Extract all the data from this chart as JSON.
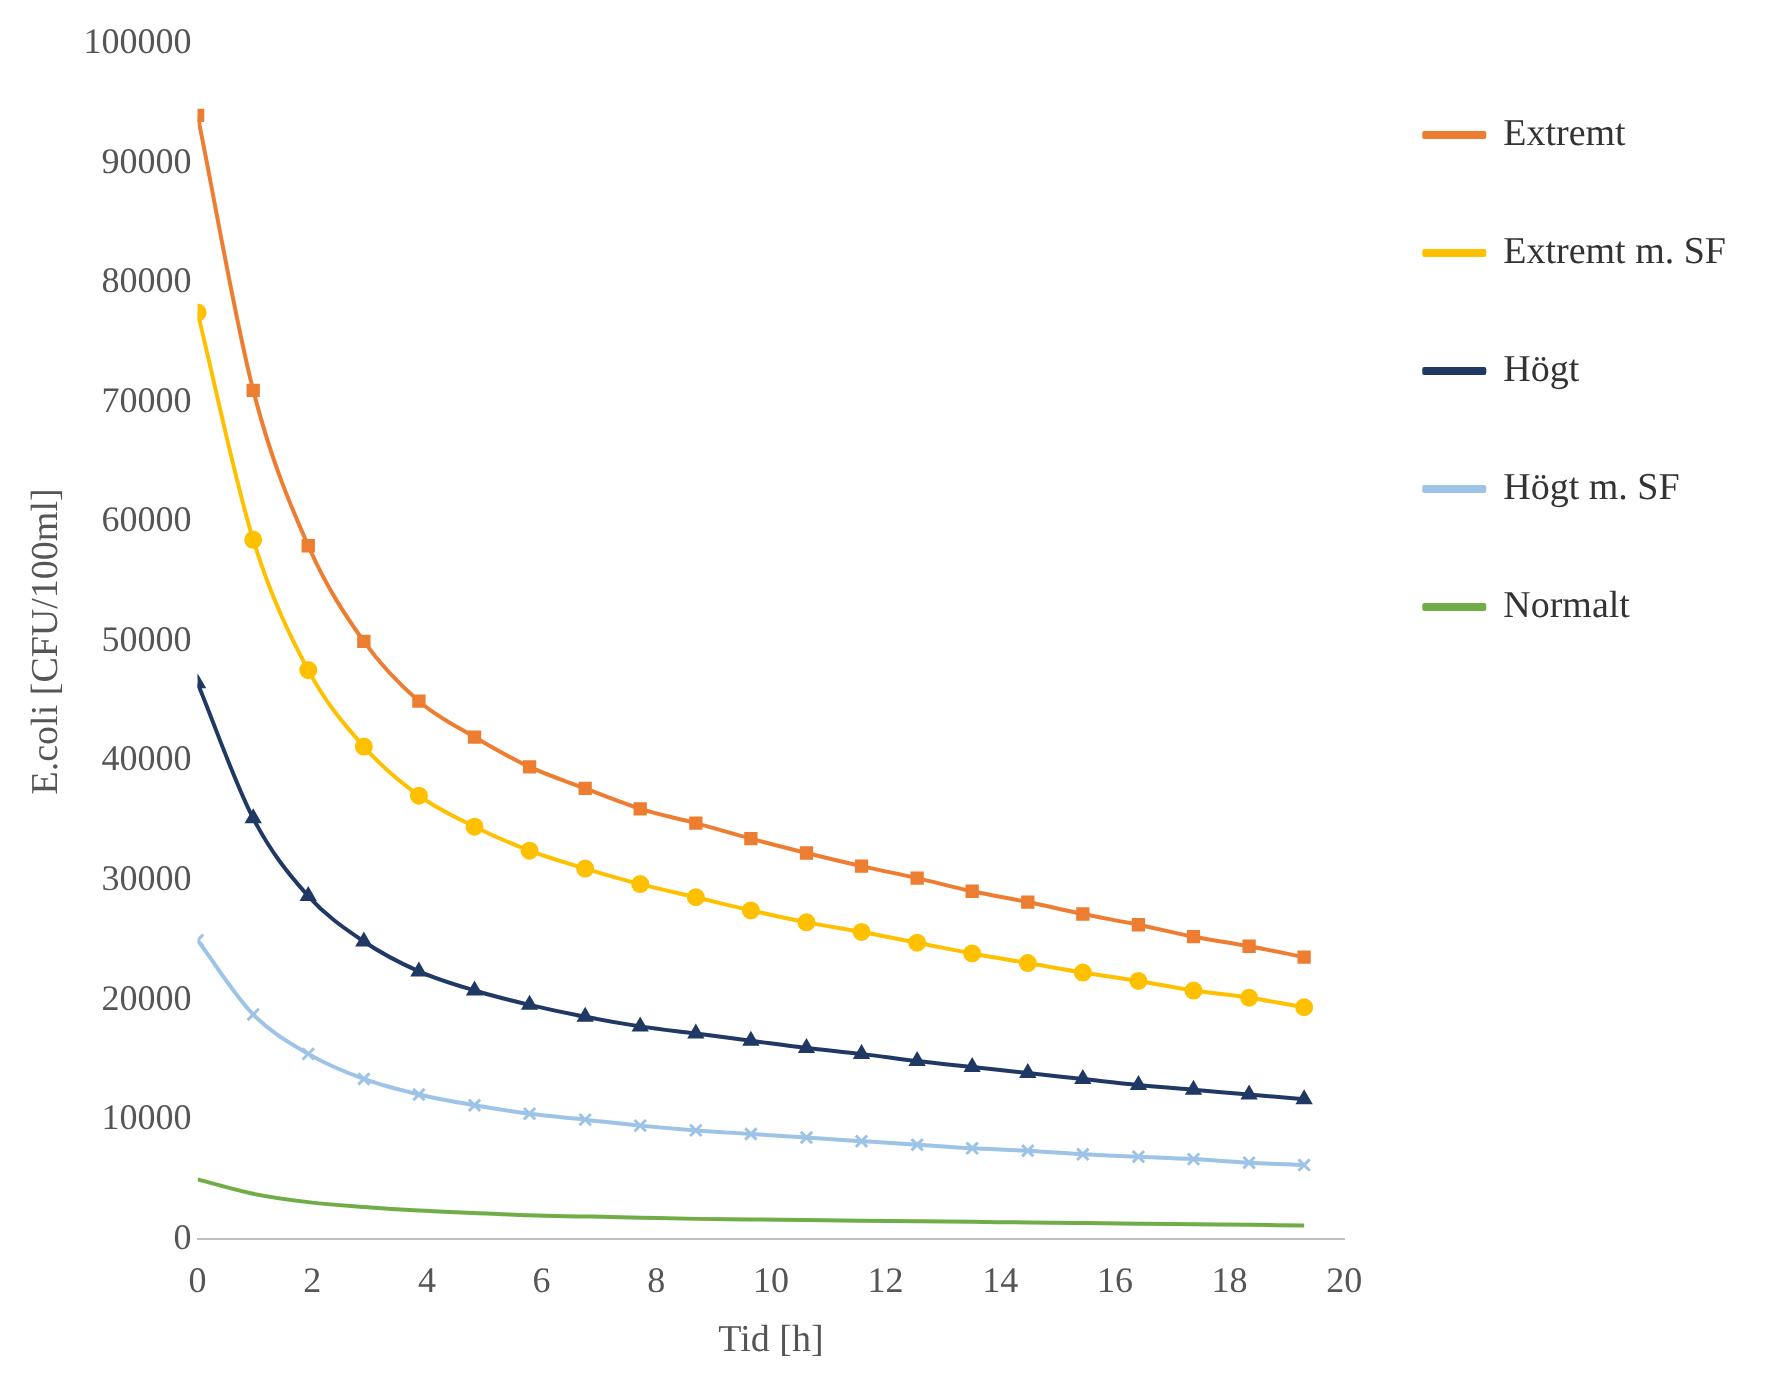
{
  "chart_data": {
    "type": "line",
    "xlabel": "Tid [h]",
    "ylabel": "E.coli [CFU/100ml]",
    "x": [
      0,
      0.97,
      1.93,
      2.9,
      3.86,
      4.83,
      5.79,
      6.76,
      7.72,
      8.69,
      9.65,
      10.62,
      11.58,
      12.55,
      13.51,
      14.48,
      15.44,
      16.41,
      17.37,
      18.34,
      19.3
    ],
    "xlim": [
      0,
      20
    ],
    "xticks": [
      0,
      2,
      4,
      6,
      8,
      10,
      12,
      14,
      16,
      18,
      20
    ],
    "ylim": [
      0,
      100000
    ],
    "yticks": [
      0,
      10000,
      20000,
      30000,
      40000,
      50000,
      60000,
      70000,
      80000,
      90000,
      100000
    ],
    "grid": false,
    "legend": "right",
    "series": [
      {
        "name": "Extremt",
        "color": "#ed7d31",
        "marker": "square",
        "values": [
          94000,
          71000,
          58000,
          50000,
          45000,
          42000,
          39500,
          37700,
          36000,
          34800,
          33500,
          32300,
          31200,
          30200,
          29100,
          28200,
          27200,
          26300,
          25300,
          24500,
          23600
        ]
      },
      {
        "name": "Extremt m. SF",
        "color": "#ffc000",
        "marker": "circle",
        "values": [
          77500,
          58500,
          47600,
          41200,
          37100,
          34500,
          32500,
          31000,
          29700,
          28600,
          27500,
          26500,
          25700,
          24800,
          23900,
          23100,
          22300,
          21600,
          20800,
          20200,
          19400
        ]
      },
      {
        "name": "Högt",
        "color": "#203864",
        "marker": "triangle",
        "values": [
          46500,
          35200,
          28700,
          24900,
          22400,
          20800,
          19600,
          18600,
          17800,
          17200,
          16600,
          16000,
          15500,
          14900,
          14400,
          13900,
          13400,
          12900,
          12500,
          12100,
          11700
        ]
      },
      {
        "name": "Högt m. SF",
        "color": "#9dc3e6",
        "marker": "cross",
        "values": [
          25000,
          18800,
          15500,
          13400,
          12100,
          11200,
          10500,
          10000,
          9500,
          9100,
          8800,
          8500,
          8200,
          7900,
          7600,
          7400,
          7100,
          6900,
          6700,
          6400,
          6200
        ]
      },
      {
        "name": "Normalt",
        "color": "#70ad47",
        "marker": "none",
        "values": [
          5000,
          3800,
          3100,
          2700,
          2400,
          2200,
          2000,
          1900,
          1800,
          1700,
          1650,
          1600,
          1550,
          1500,
          1450,
          1400,
          1350,
          1300,
          1250,
          1200,
          1150
        ]
      }
    ]
  }
}
